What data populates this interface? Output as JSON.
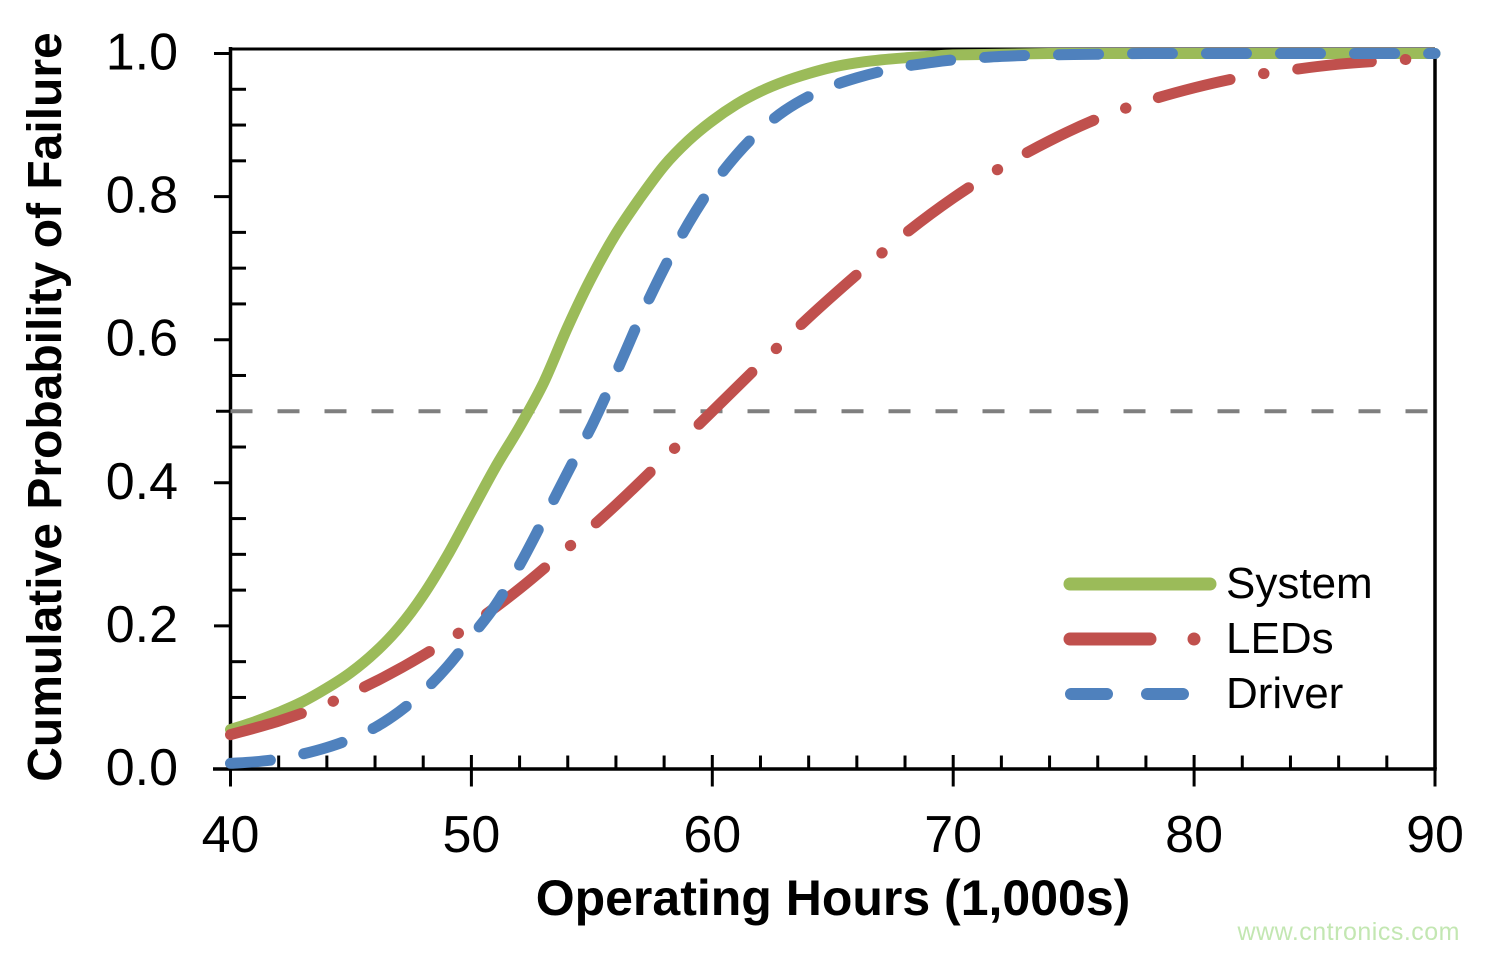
{
  "page": {
    "watermark": "www.cntronics.com"
  },
  "chart_data": {
    "type": "line",
    "title": "",
    "xlabel": "Operating Hours (1,000s)",
    "ylabel": "Cumulative Probability of Failure",
    "xlim": [
      40,
      90
    ],
    "ylim": [
      0.0,
      1.0
    ],
    "x_tick_values": [
      40,
      50,
      60,
      70,
      80,
      90
    ],
    "x_tick_labels": [
      "40",
      "50",
      "60",
      "70",
      "80",
      "90"
    ],
    "x_minor_tick_step": 2,
    "y_tick_values": [
      0.0,
      0.2,
      0.4,
      0.6,
      0.8,
      1.0
    ],
    "y_tick_labels": [
      "0.0",
      "0.2",
      "0.4",
      "0.6",
      "0.8",
      "1.0"
    ],
    "y_minor_tick_step": 0.05,
    "grid": "off",
    "reference_line": {
      "y": 0.5,
      "style": "dashed",
      "color": "#7F7F7F"
    },
    "legend_position": "inside-lower-right",
    "axis_color": "#000000",
    "series": [
      {
        "name": "System",
        "style": "solid",
        "color": "#9BBB59",
        "x": [
          40,
          41,
          42,
          43,
          44,
          45,
          46,
          47,
          48,
          49,
          50,
          51,
          52,
          53,
          54,
          55,
          56,
          57,
          58,
          59,
          60,
          61,
          62,
          63,
          64,
          65,
          66,
          67,
          68,
          69,
          70,
          72,
          74,
          76,
          80,
          85,
          90
        ],
        "y": [
          0.055,
          0.066,
          0.079,
          0.094,
          0.113,
          0.135,
          0.163,
          0.198,
          0.243,
          0.298,
          0.36,
          0.422,
          0.478,
          0.54,
          0.618,
          0.688,
          0.748,
          0.798,
          0.843,
          0.878,
          0.906,
          0.929,
          0.947,
          0.961,
          0.972,
          0.981,
          0.987,
          0.991,
          0.994,
          0.996,
          0.998,
          0.999,
          1.0,
          1.0,
          1.0,
          1.0,
          1.0
        ]
      },
      {
        "name": "LEDs",
        "style": "dash-dot",
        "color": "#C0504D",
        "x": [
          40,
          42,
          44,
          46,
          48,
          50,
          52,
          54,
          56,
          58,
          60,
          62,
          64,
          66,
          68,
          70,
          72,
          74,
          76,
          78,
          80,
          82,
          84,
          86,
          88,
          90
        ],
        "y": [
          0.048,
          0.067,
          0.091,
          0.122,
          0.159,
          0.202,
          0.252,
          0.309,
          0.369,
          0.434,
          0.5,
          0.566,
          0.631,
          0.691,
          0.748,
          0.798,
          0.841,
          0.878,
          0.909,
          0.933,
          0.952,
          0.967,
          0.977,
          0.985,
          0.99,
          0.994
        ]
      },
      {
        "name": "Driver",
        "style": "dashed",
        "color": "#4F81BD",
        "x": [
          40,
          41,
          42,
          43,
          44,
          45,
          46,
          47,
          48,
          49,
          50,
          51,
          52,
          53,
          54,
          55,
          56,
          57,
          58,
          59,
          60,
          61,
          62,
          63,
          64,
          65,
          66,
          67,
          68,
          69,
          70,
          72,
          74,
          76,
          78,
          80,
          85,
          90
        ],
        "y": [
          0.008,
          0.01,
          0.014,
          0.021,
          0.03,
          0.042,
          0.058,
          0.08,
          0.108,
          0.143,
          0.185,
          0.229,
          0.285,
          0.349,
          0.415,
          0.48,
          0.553,
          0.63,
          0.7,
          0.762,
          0.815,
          0.858,
          0.893,
          0.92,
          0.94,
          0.955,
          0.966,
          0.975,
          0.982,
          0.987,
          0.991,
          0.996,
          0.998,
          0.999,
          1.0,
          1.0,
          1.0,
          1.0
        ]
      }
    ]
  }
}
